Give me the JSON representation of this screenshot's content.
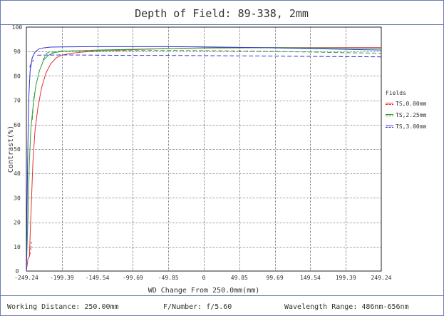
{
  "chart_data": {
    "type": "line",
    "title": "Depth of Field: 89-338, 2mm",
    "xlabel": "WD Change From 250.0mm(mm)",
    "ylabel": "Contrast(%)",
    "xlim": [
      -249.24,
      249.24
    ],
    "ylim": [
      0,
      100
    ],
    "xticks": [
      -249.24,
      -199.39,
      -149.54,
      -99.69,
      -49.85,
      0,
      49.85,
      99.69,
      149.54,
      199.39,
      249.24
    ],
    "xtick_labels": [
      "-249.24",
      "-199.39",
      "-149.54",
      "-99.69",
      "-49.85",
      "0",
      "49.85",
      "99.69",
      "149.54",
      "199.39",
      "249.24"
    ],
    "yticks": [
      0,
      10,
      20,
      30,
      40,
      50,
      60,
      70,
      80,
      90,
      100
    ],
    "ytick_labels": [
      "0",
      "10",
      "20",
      "30",
      "40",
      "50",
      "60",
      "70",
      "80",
      "90",
      "100"
    ],
    "grid": true,
    "legend": {
      "title": "Fields",
      "position": "right"
    },
    "series": [
      {
        "name": "TS,0.00mm",
        "kind": "tangential",
        "color": "#e03030",
        "points": [
          [
            -249.24,
            0
          ],
          [
            -247,
            5
          ],
          [
            -245,
            6
          ],
          [
            -243,
            22
          ],
          [
            -240,
            45
          ],
          [
            -237,
            58
          ],
          [
            -233,
            67
          ],
          [
            -228,
            75
          ],
          [
            -222,
            81
          ],
          [
            -215,
            85
          ],
          [
            -207,
            87.5
          ],
          [
            -199.39,
            88.5
          ],
          [
            -185,
            89.3
          ],
          [
            -170,
            89.8
          ],
          [
            -149.54,
            90.2
          ],
          [
            -99.69,
            90.8
          ],
          [
            -49.85,
            91.2
          ],
          [
            0,
            91.4
          ],
          [
            49.85,
            91.5
          ],
          [
            99.69,
            91.6
          ],
          [
            149.54,
            91.6
          ],
          [
            199.39,
            91.6
          ],
          [
            249.24,
            91.6
          ]
        ]
      },
      {
        "name": "TS,0.00mm",
        "kind": "sagittal",
        "color": "#e03030",
        "points": [
          [
            -245,
            6
          ],
          [
            -243.5,
            8
          ],
          [
            -242,
            12
          ]
        ]
      },
      {
        "name": "TS,2.25mm",
        "kind": "tangential",
        "color": "#2e9a3a",
        "points": [
          [
            -249.24,
            0
          ],
          [
            -247,
            22
          ],
          [
            -245,
            45
          ],
          [
            -243,
            58
          ],
          [
            -240,
            67
          ],
          [
            -236,
            76
          ],
          [
            -231,
            82
          ],
          [
            -225,
            86.5
          ],
          [
            -218,
            88.5
          ],
          [
            -210,
            89.5
          ],
          [
            -199.39,
            90.1
          ],
          [
            -149.54,
            90.6
          ],
          [
            -99.69,
            90.9
          ],
          [
            -49.85,
            91.2
          ],
          [
            0,
            91.5
          ],
          [
            49.85,
            91.6
          ],
          [
            99.69,
            91.6
          ],
          [
            149.54,
            91.5
          ],
          [
            199.39,
            91.4
          ],
          [
            249.24,
            91.3
          ]
        ]
      },
      {
        "name": "TS,2.25mm",
        "kind": "sagittal",
        "color": "#2e9a3a",
        "points": [
          [
            -241,
            62
          ],
          [
            -239.5,
            68
          ],
          [
            -238,
            73
          ]
        ]
      },
      {
        "name": "TS,2.25mm",
        "kind": "sagittal",
        "color": "#2e9a3a",
        "points": [
          [
            -226,
            86.5
          ],
          [
            -220,
            89.5
          ],
          [
            -199.39,
            90.2
          ],
          [
            -149.54,
            90.3
          ],
          [
            -99.69,
            90.4
          ],
          [
            -49.85,
            90.5
          ],
          [
            0,
            90.4
          ],
          [
            49.85,
            90.2
          ],
          [
            99.69,
            90.0
          ],
          [
            149.54,
            89.8
          ],
          [
            199.39,
            89.5
          ],
          [
            249.24,
            89.3
          ]
        ]
      },
      {
        "name": "TS,3.00mm",
        "kind": "tangential",
        "color": "#3030d0",
        "points": [
          [
            -249.24,
            0
          ],
          [
            -247.5,
            45
          ],
          [
            -246,
            70
          ],
          [
            -244,
            82
          ],
          [
            -241,
            87.5
          ],
          [
            -237,
            89.8
          ],
          [
            -232,
            91
          ],
          [
            -225,
            91.5
          ],
          [
            -215,
            91.8
          ],
          [
            -199.39,
            91.9
          ],
          [
            -149.54,
            92.0
          ],
          [
            -99.69,
            92.0
          ],
          [
            -49.85,
            92.0
          ],
          [
            0,
            91.9
          ],
          [
            49.85,
            91.7
          ],
          [
            99.69,
            91.5
          ],
          [
            149.54,
            91.2
          ],
          [
            199.39,
            90.9
          ],
          [
            249.24,
            90.6
          ]
        ]
      },
      {
        "name": "TS,3.00mm",
        "kind": "sagittal",
        "color": "#3030d0",
        "points": [
          [
            -244.5,
            83.5
          ],
          [
            -242,
            85.5
          ],
          [
            -239,
            86.5
          ]
        ]
      },
      {
        "name": "TS,3.00mm",
        "kind": "sagittal",
        "color": "#3030d0",
        "points": [
          [
            -234,
            88.5
          ],
          [
            -199.39,
            88.6
          ],
          [
            -149.54,
            88.5
          ],
          [
            -99.69,
            88.4
          ],
          [
            -49.85,
            88.4
          ],
          [
            0,
            88.3
          ],
          [
            49.85,
            88.2
          ],
          [
            99.69,
            88.1
          ],
          [
            149.54,
            88.0
          ],
          [
            199.39,
            87.9
          ],
          [
            249.24,
            87.8
          ]
        ]
      }
    ],
    "legend_entries": [
      {
        "label": "TS,0.00mm",
        "color": "#e03030"
      },
      {
        "label": "TS,2.25mm",
        "color": "#2e9a3a"
      },
      {
        "label": "TS,3.00mm",
        "color": "#3030d0"
      }
    ]
  },
  "footer": {
    "working_distance": "Working Distance: 250.00mm",
    "f_number": "F/Number: f/5.60",
    "wavelength": "Wavelength Range: 486nm-656nm"
  },
  "colors": {
    "frame": "#6a7bb0",
    "grid": "#222222",
    "text": "#333333"
  }
}
